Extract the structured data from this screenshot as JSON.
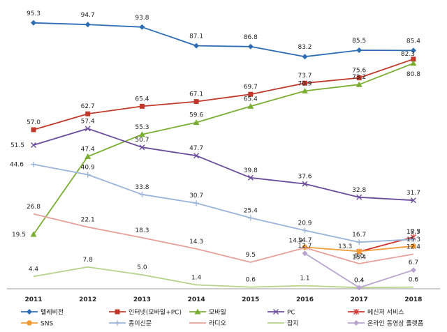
{
  "chart_data": {
    "type": "line",
    "title": "",
    "xlabel": "",
    "ylabel": "",
    "ylim": [
      0,
      100
    ],
    "grid": false,
    "legend_position": "bottom",
    "categories": [
      "2011",
      "2012",
      "2013",
      "2014",
      "2015",
      "2016",
      "2017",
      "2018"
    ],
    "series": [
      {
        "name": "텔레비전",
        "color": "#2E6DB4",
        "marker": "diamond",
        "values": [
          95.3,
          94.7,
          93.8,
          87.1,
          86.8,
          83.2,
          85.5,
          85.4
        ],
        "labels": [
          "95.3",
          "94.7",
          "93.8",
          "87.1",
          "86.8",
          "83.2",
          "85.5",
          "85.4"
        ]
      },
      {
        "name": "인터넷(모바일+PC)",
        "color": "#C0392B",
        "marker": "square",
        "values": [
          57.0,
          62.7,
          65.4,
          67.1,
          69.7,
          73.7,
          75.6,
          82.3
        ],
        "labels": [
          "57.0",
          "62.7",
          "65.4",
          "67.1",
          "69.7",
          "73.7",
          "75.6",
          "82.3"
        ]
      },
      {
        "name": "모바일",
        "color": "#7AAE32",
        "marker": "triangle",
        "values": [
          19.5,
          47.4,
          55.3,
          59.6,
          65.4,
          70.9,
          73.2,
          80.8
        ],
        "labels": [
          "19.5",
          "47.4",
          "55.3",
          "59.6",
          "65.4",
          "70.9",
          "73.2",
          "80.8"
        ]
      },
      {
        "name": "PC",
        "color": "#6B4C9A",
        "marker": "x",
        "values": [
          51.5,
          57.4,
          50.7,
          47.7,
          39.8,
          37.6,
          32.8,
          31.7
        ],
        "labels": [
          "51.5",
          "57.4",
          "50.7",
          "47.7",
          "39.8",
          "37.6",
          "32.8",
          "31.7"
        ]
      },
      {
        "name": "메신저 서비스",
        "color": "#D2322D",
        "marker": "star",
        "values": [
          null,
          null,
          null,
          null,
          null,
          null,
          13.3,
          18.5
        ],
        "labels": [
          "",
          "",
          "",
          "",
          "",
          "",
          "13.3",
          "18.5"
        ]
      },
      {
        "name": "SNS",
        "color": "#F39B35",
        "marker": "circle",
        "values": [
          null,
          null,
          null,
          null,
          null,
          14.9,
          13.4,
          15.3
        ],
        "labels": [
          "",
          "",
          "",
          "",
          "",
          "14.9",
          "13.4",
          "15.3"
        ]
      },
      {
        "name": "종이신문",
        "color": "#9BB4D9",
        "marker": "plus",
        "values": [
          44.6,
          40.9,
          33.8,
          30.7,
          25.4,
          20.9,
          16.7,
          17.7
        ],
        "labels": [
          "44.6",
          "40.9",
          "33.8",
          "30.7",
          "25.4",
          "20.9",
          "16.7",
          "17.7"
        ]
      },
      {
        "name": "라디오",
        "color": "#E8A09A",
        "marker": "none",
        "values": [
          26.8,
          22.1,
          18.3,
          14.3,
          9.5,
          14.7,
          9.0,
          12.4
        ],
        "labels": [
          "26.8",
          "22.1",
          "18.3",
          "14.3",
          "9.5",
          "14.7",
          "9.0",
          "12.4"
        ]
      },
      {
        "name": "잡지",
        "color": "#B5D38A",
        "marker": "none",
        "values": [
          4.4,
          7.8,
          5.0,
          1.4,
          0.6,
          1.1,
          0.4,
          0.6
        ],
        "labels": [
          "4.4",
          "7.8",
          "5.0",
          "1.4",
          "0.6",
          "1.1",
          "0.4",
          "0.6"
        ]
      },
      {
        "name": "온라인 동영상 플랫폼",
        "color": "#B8A4CF",
        "marker": "diamond",
        "values": [
          null,
          null,
          null,
          null,
          null,
          12.7,
          0.4,
          6.7
        ],
        "labels": [
          "",
          "",
          "",
          "",
          "",
          "12.7",
          "0.4",
          "6.7"
        ]
      }
    ]
  }
}
